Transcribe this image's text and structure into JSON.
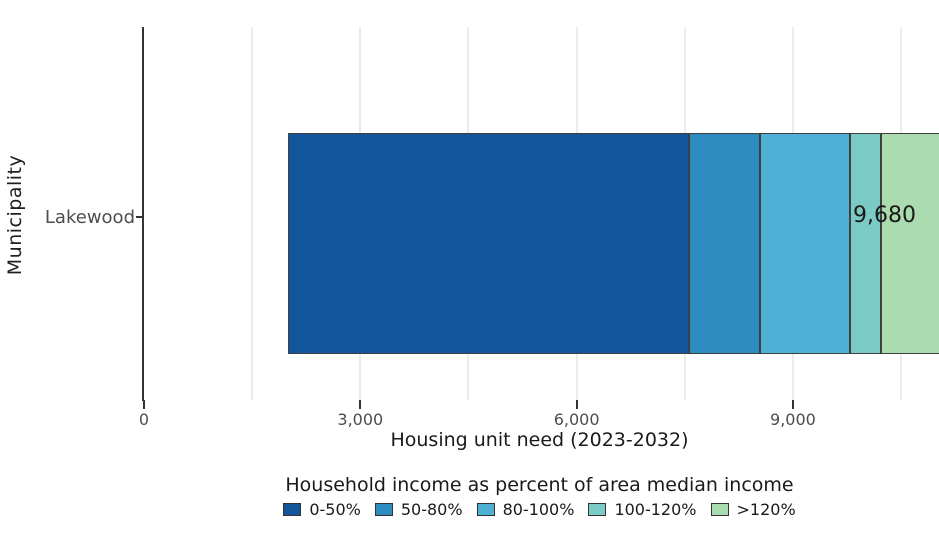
{
  "chart_data": {
    "type": "bar",
    "orientation": "horizontal",
    "stacked": true,
    "title": "",
    "xlabel": "Housing unit need (2023-2032)",
    "ylabel": "Municipality",
    "categories": [
      "Lakewood"
    ],
    "series": [
      {
        "name": "0-50%",
        "values": [
          5560
        ],
        "color": "#11569B"
      },
      {
        "name": "50-80%",
        "values": [
          980
        ],
        "color": "#2E8BC0"
      },
      {
        "name": "80-100%",
        "values": [
          1260
        ],
        "color": "#4FB0D5"
      },
      {
        "name": "100-120%",
        "values": [
          420
        ],
        "color": "#7BCAC6"
      },
      {
        "name": ">120%",
        "values": [
          1460
        ],
        "color": "#ABDCB0"
      }
    ],
    "totals": [
      "9,680"
    ],
    "total_value": 9680,
    "x_ticks": [
      0,
      3000,
      6000,
      9000
    ],
    "x_tick_labels": [
      "0",
      "3,000",
      "6,000",
      "9,000"
    ],
    "xlim": [
      0,
      10970
    ],
    "gridline_step": 1500,
    "grid": true,
    "legend_position": "bottom",
    "legend_title": "Household income as percent of area median income"
  },
  "colors": {
    "background": "#ffffff",
    "gridline": "#ececec",
    "axis_line": "#333333",
    "bar_outline": "#3f3f3f",
    "tick_label": "#4d4d4d",
    "text": "#1a1a1a"
  }
}
